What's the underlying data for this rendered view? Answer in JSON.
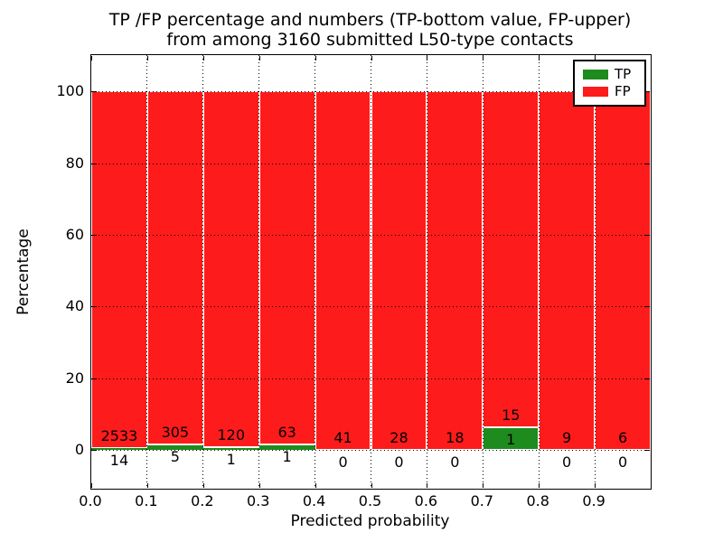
{
  "title": {
    "line1": "TP /FP percentage and numbers (TP-bottom value, FP-upper)",
    "line2": "from among 3160 submitted L50-type contacts"
  },
  "axes": {
    "xlabel": "Predicted probability",
    "ylabel": "Percentage",
    "x_ticks": [
      "0.0",
      "0.1",
      "0.2",
      "0.3",
      "0.4",
      "0.5",
      "0.6",
      "0.7",
      "0.8",
      "0.9"
    ],
    "y_ticks": [
      "0",
      "20",
      "40",
      "60",
      "80",
      "100"
    ]
  },
  "legend": {
    "entries": [
      {
        "label": "TP",
        "color_key": "TP"
      },
      {
        "label": "FP",
        "color_key": "FP"
      }
    ],
    "position": "upper right"
  },
  "chart_data": {
    "type": "bar",
    "stacked": true,
    "normalized": "each bin stacked to 100%",
    "title": "TP /FP percentage and numbers (TP-bottom value, FP-upper) from among 3160 submitted L50-type contacts",
    "xlabel": "Predicted probability",
    "ylabel": "Percentage",
    "categories": [
      "0.0-0.1",
      "0.1-0.2",
      "0.2-0.3",
      "0.3-0.4",
      "0.4-0.5",
      "0.5-0.6",
      "0.6-0.7",
      "0.7-0.8",
      "0.8-0.9",
      "0.9-1.0"
    ],
    "x_bin_edges": [
      0.0,
      0.1,
      0.2,
      0.3,
      0.4,
      0.5,
      0.6,
      0.7,
      0.8,
      0.9,
      1.0
    ],
    "series": [
      {
        "name": "TP",
        "counts": [
          14,
          5,
          1,
          1,
          0,
          0,
          0,
          1,
          0,
          0
        ]
      },
      {
        "name": "FP",
        "counts": [
          2533,
          305,
          120,
          63,
          41,
          28,
          18,
          15,
          9,
          6
        ]
      }
    ],
    "total_contacts": 3160,
    "ylim": [
      -11,
      110
    ],
    "y_ticks": [
      0,
      20,
      40,
      60,
      80,
      100
    ],
    "colors": {
      "TP": "#1e8b1e",
      "FP": "#fe1b1b"
    },
    "grid": "dotted, drawn above bars",
    "bar_edge_color": "#ffffff",
    "legend_position": "upper right"
  }
}
